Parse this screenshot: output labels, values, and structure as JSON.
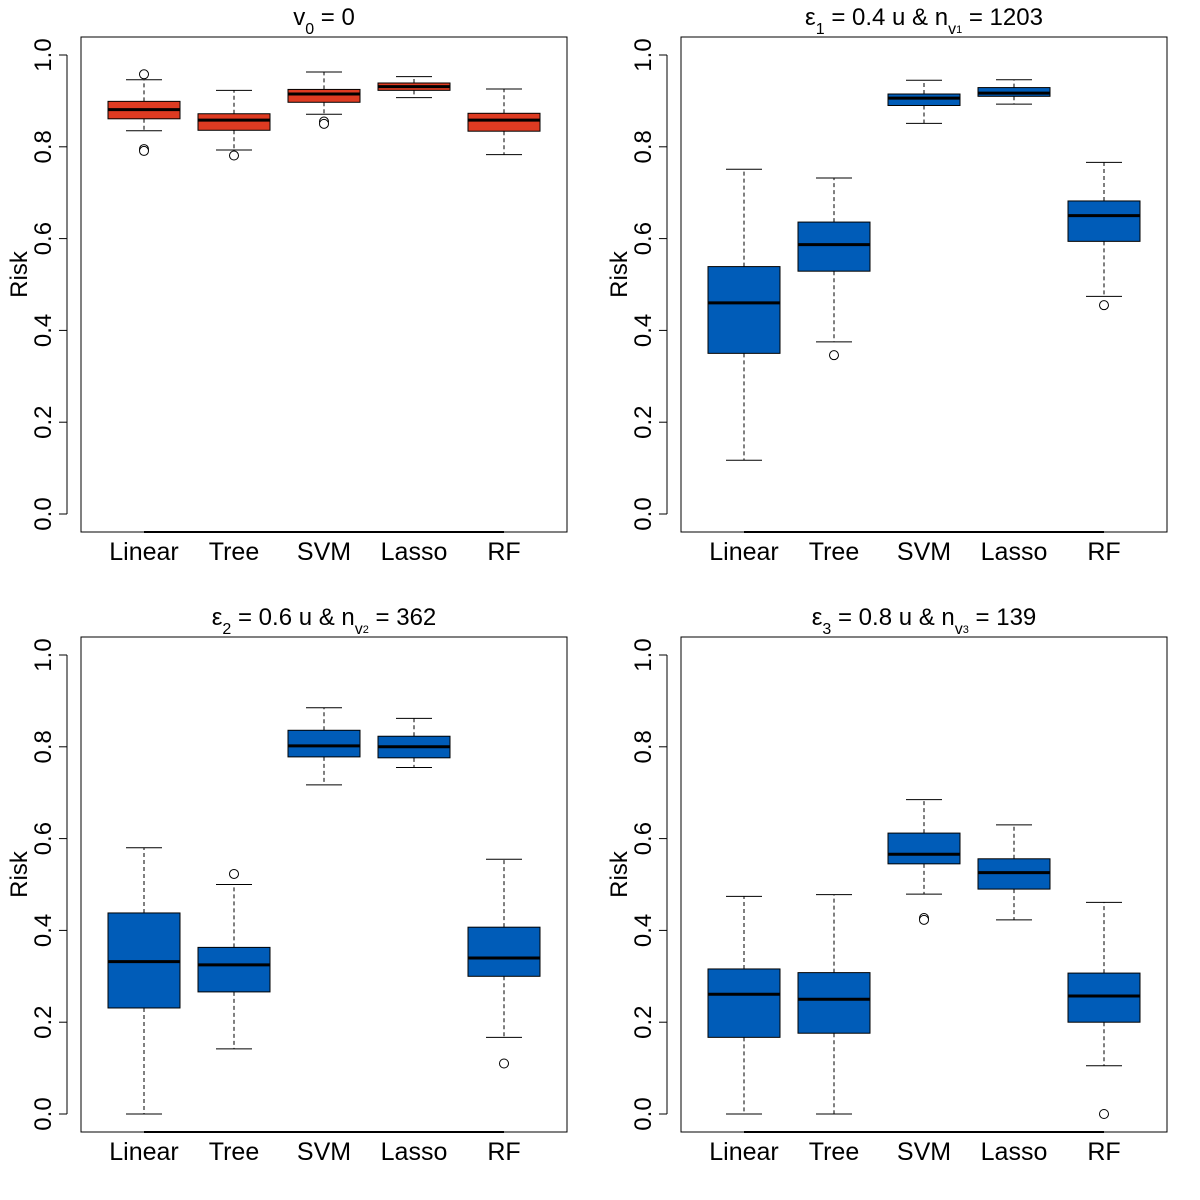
{
  "colors": {
    "red_box": "#de3b22",
    "blue_box": "#005cb8",
    "median": "#000000",
    "axis": "#000000"
  },
  "chart_data": [
    {
      "type": "boxplot",
      "title_parts": {
        "main": "v",
        "sub": "0",
        "rest": " = 0"
      },
      "title_text": "v0 = 0",
      "ylabel": "Risk",
      "ylim": [
        0,
        1
      ],
      "yticks": [
        "0.0",
        "0.2",
        "0.4",
        "0.6",
        "0.8",
        "1.0"
      ],
      "categories": [
        "Linear",
        "Tree",
        "SVM",
        "Lasso",
        "RF"
      ],
      "fill": "#de3b22",
      "boxes": [
        {
          "whisker_low": 0.835,
          "q1": 0.861,
          "median": 0.881,
          "q3": 0.899,
          "whisker_high": 0.946,
          "outliers": [
            0.958,
            0.795,
            0.791
          ]
        },
        {
          "whisker_low": 0.793,
          "q1": 0.836,
          "median": 0.858,
          "q3": 0.872,
          "whisker_high": 0.923,
          "outliers": [
            0.781
          ]
        },
        {
          "whisker_low": 0.871,
          "q1": 0.897,
          "median": 0.915,
          "q3": 0.925,
          "whisker_high": 0.963,
          "outliers": [
            0.855,
            0.85
          ]
        },
        {
          "whisker_low": 0.907,
          "q1": 0.923,
          "median": 0.931,
          "q3": 0.939,
          "whisker_high": 0.953,
          "outliers": []
        },
        {
          "whisker_low": 0.783,
          "q1": 0.834,
          "median": 0.858,
          "q3": 0.873,
          "whisker_high": 0.926,
          "outliers": []
        }
      ]
    },
    {
      "type": "boxplot",
      "title_parts": {
        "main": "ε",
        "sub": "1",
        "rest": " = 0.4 u & n",
        "sub2": "v",
        "sub2sub": "1",
        "rest2": " = 1203"
      },
      "title_text": "ε1 = 0.4 u & nv1 = 1203",
      "ylabel": "Risk",
      "ylim": [
        0,
        1
      ],
      "yticks": [
        "0.0",
        "0.2",
        "0.4",
        "0.6",
        "0.8",
        "1.0"
      ],
      "categories": [
        "Linear",
        "Tree",
        "SVM",
        "Lasso",
        "RF"
      ],
      "fill": "#005cb8",
      "boxes": [
        {
          "whisker_low": 0.117,
          "q1": 0.35,
          "median": 0.46,
          "q3": 0.539,
          "whisker_high": 0.751,
          "outliers": []
        },
        {
          "whisker_low": 0.375,
          "q1": 0.529,
          "median": 0.587,
          "q3": 0.636,
          "whisker_high": 0.732,
          "outliers": [
            0.346
          ]
        },
        {
          "whisker_low": 0.851,
          "q1": 0.89,
          "median": 0.906,
          "q3": 0.915,
          "whisker_high": 0.945,
          "outliers": []
        },
        {
          "whisker_low": 0.893,
          "q1": 0.91,
          "median": 0.917,
          "q3": 0.929,
          "whisker_high": 0.946,
          "outliers": []
        },
        {
          "whisker_low": 0.474,
          "q1": 0.594,
          "median": 0.65,
          "q3": 0.682,
          "whisker_high": 0.766,
          "outliers": [
            0.455
          ]
        }
      ]
    },
    {
      "type": "boxplot",
      "title_parts": {
        "main": "ε",
        "sub": "2",
        "rest": " = 0.6 u & n",
        "sub2": "v",
        "sub2sub": "2",
        "rest2": " = 362"
      },
      "title_text": "ε2 = 0.6 u & nv2 = 362",
      "ylabel": "Risk",
      "ylim": [
        0,
        1
      ],
      "yticks": [
        "0.0",
        "0.2",
        "0.4",
        "0.6",
        "0.8",
        "1.0"
      ],
      "categories": [
        "Linear",
        "Tree",
        "SVM",
        "Lasso",
        "RF"
      ],
      "fill": "#005cb8",
      "boxes": [
        {
          "whisker_low": 0.0,
          "q1": 0.231,
          "median": 0.332,
          "q3": 0.438,
          "whisker_high": 0.58,
          "outliers": []
        },
        {
          "whisker_low": 0.142,
          "q1": 0.266,
          "median": 0.325,
          "q3": 0.363,
          "whisker_high": 0.5,
          "outliers": [
            0.523
          ]
        },
        {
          "whisker_low": 0.717,
          "q1": 0.778,
          "median": 0.802,
          "q3": 0.836,
          "whisker_high": 0.885,
          "outliers": []
        },
        {
          "whisker_low": 0.755,
          "q1": 0.776,
          "median": 0.8,
          "q3": 0.823,
          "whisker_high": 0.862,
          "outliers": []
        },
        {
          "whisker_low": 0.167,
          "q1": 0.3,
          "median": 0.34,
          "q3": 0.407,
          "whisker_high": 0.555,
          "outliers": [
            0.11
          ]
        }
      ]
    },
    {
      "type": "boxplot",
      "title_parts": {
        "main": "ε",
        "sub": "3",
        "rest": " = 0.8 u & n",
        "sub2": "v",
        "sub2sub": "3",
        "rest2": " = 139"
      },
      "title_text": "ε3 = 0.8 u & nv3 = 139",
      "ylabel": "Risk",
      "ylim": [
        0,
        1
      ],
      "yticks": [
        "0.0",
        "0.2",
        "0.4",
        "0.6",
        "0.8",
        "1.0"
      ],
      "categories": [
        "Linear",
        "Tree",
        "SVM",
        "Lasso",
        "RF"
      ],
      "fill": "#005cb8",
      "boxes": [
        {
          "whisker_low": 0.0,
          "q1": 0.167,
          "median": 0.261,
          "q3": 0.316,
          "whisker_high": 0.474,
          "outliers": []
        },
        {
          "whisker_low": 0.0,
          "q1": 0.176,
          "median": 0.25,
          "q3": 0.308,
          "whisker_high": 0.478,
          "outliers": []
        },
        {
          "whisker_low": 0.479,
          "q1": 0.545,
          "median": 0.566,
          "q3": 0.612,
          "whisker_high": 0.685,
          "outliers": [
            0.427,
            0.423
          ]
        },
        {
          "whisker_low": 0.423,
          "q1": 0.49,
          "median": 0.526,
          "q3": 0.556,
          "whisker_high": 0.63,
          "outliers": []
        },
        {
          "whisker_low": 0.105,
          "q1": 0.2,
          "median": 0.257,
          "q3": 0.307,
          "whisker_high": 0.461,
          "outliers": [
            0.0
          ]
        }
      ]
    }
  ]
}
